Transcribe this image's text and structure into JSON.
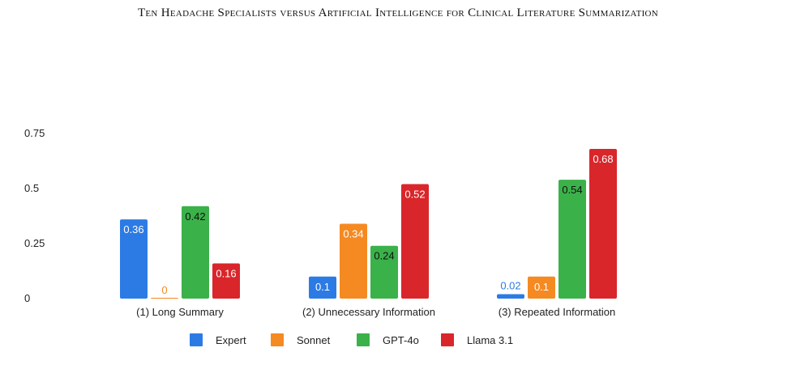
{
  "header": {
    "running_title": "Ten Headache Specialists versus Artificial Intelligence for Clinical Literature Summarization"
  },
  "chart_data": {
    "type": "bar",
    "categories": [
      "(1) Long Summary",
      "(2) Unnecessary Information",
      "(3) Repeated Information"
    ],
    "series": [
      {
        "name": "Expert",
        "color": "#2c7be5",
        "values": [
          0.36,
          0.1,
          0.02
        ],
        "labels": [
          "0.36",
          "0.1",
          "0.02"
        ]
      },
      {
        "name": "Sonnet",
        "color": "#f58a22",
        "values": [
          0,
          0.34,
          0.1
        ],
        "labels": [
          "0",
          "0.34",
          "0.1"
        ]
      },
      {
        "name": "GPT-4o",
        "color": "#3bb14a",
        "values": [
          0.42,
          0.24,
          0.54
        ],
        "labels": [
          "0.42",
          "0.24",
          "0.54"
        ]
      },
      {
        "name": "Llama 3.1",
        "color": "#d9262b",
        "values": [
          0.16,
          0.52,
          0.68
        ],
        "labels": [
          "0.16",
          "0.52",
          "0.68"
        ]
      }
    ],
    "yticks": [
      0,
      0.25,
      0.5,
      0.75
    ],
    "ytick_labels": [
      "0",
      "0.25",
      "0.5",
      "0.75"
    ],
    "ylim": [
      0,
      0.75
    ],
    "grid": false,
    "legend_position": "bottom-center",
    "title": "",
    "xlabel": "",
    "ylabel": ""
  }
}
